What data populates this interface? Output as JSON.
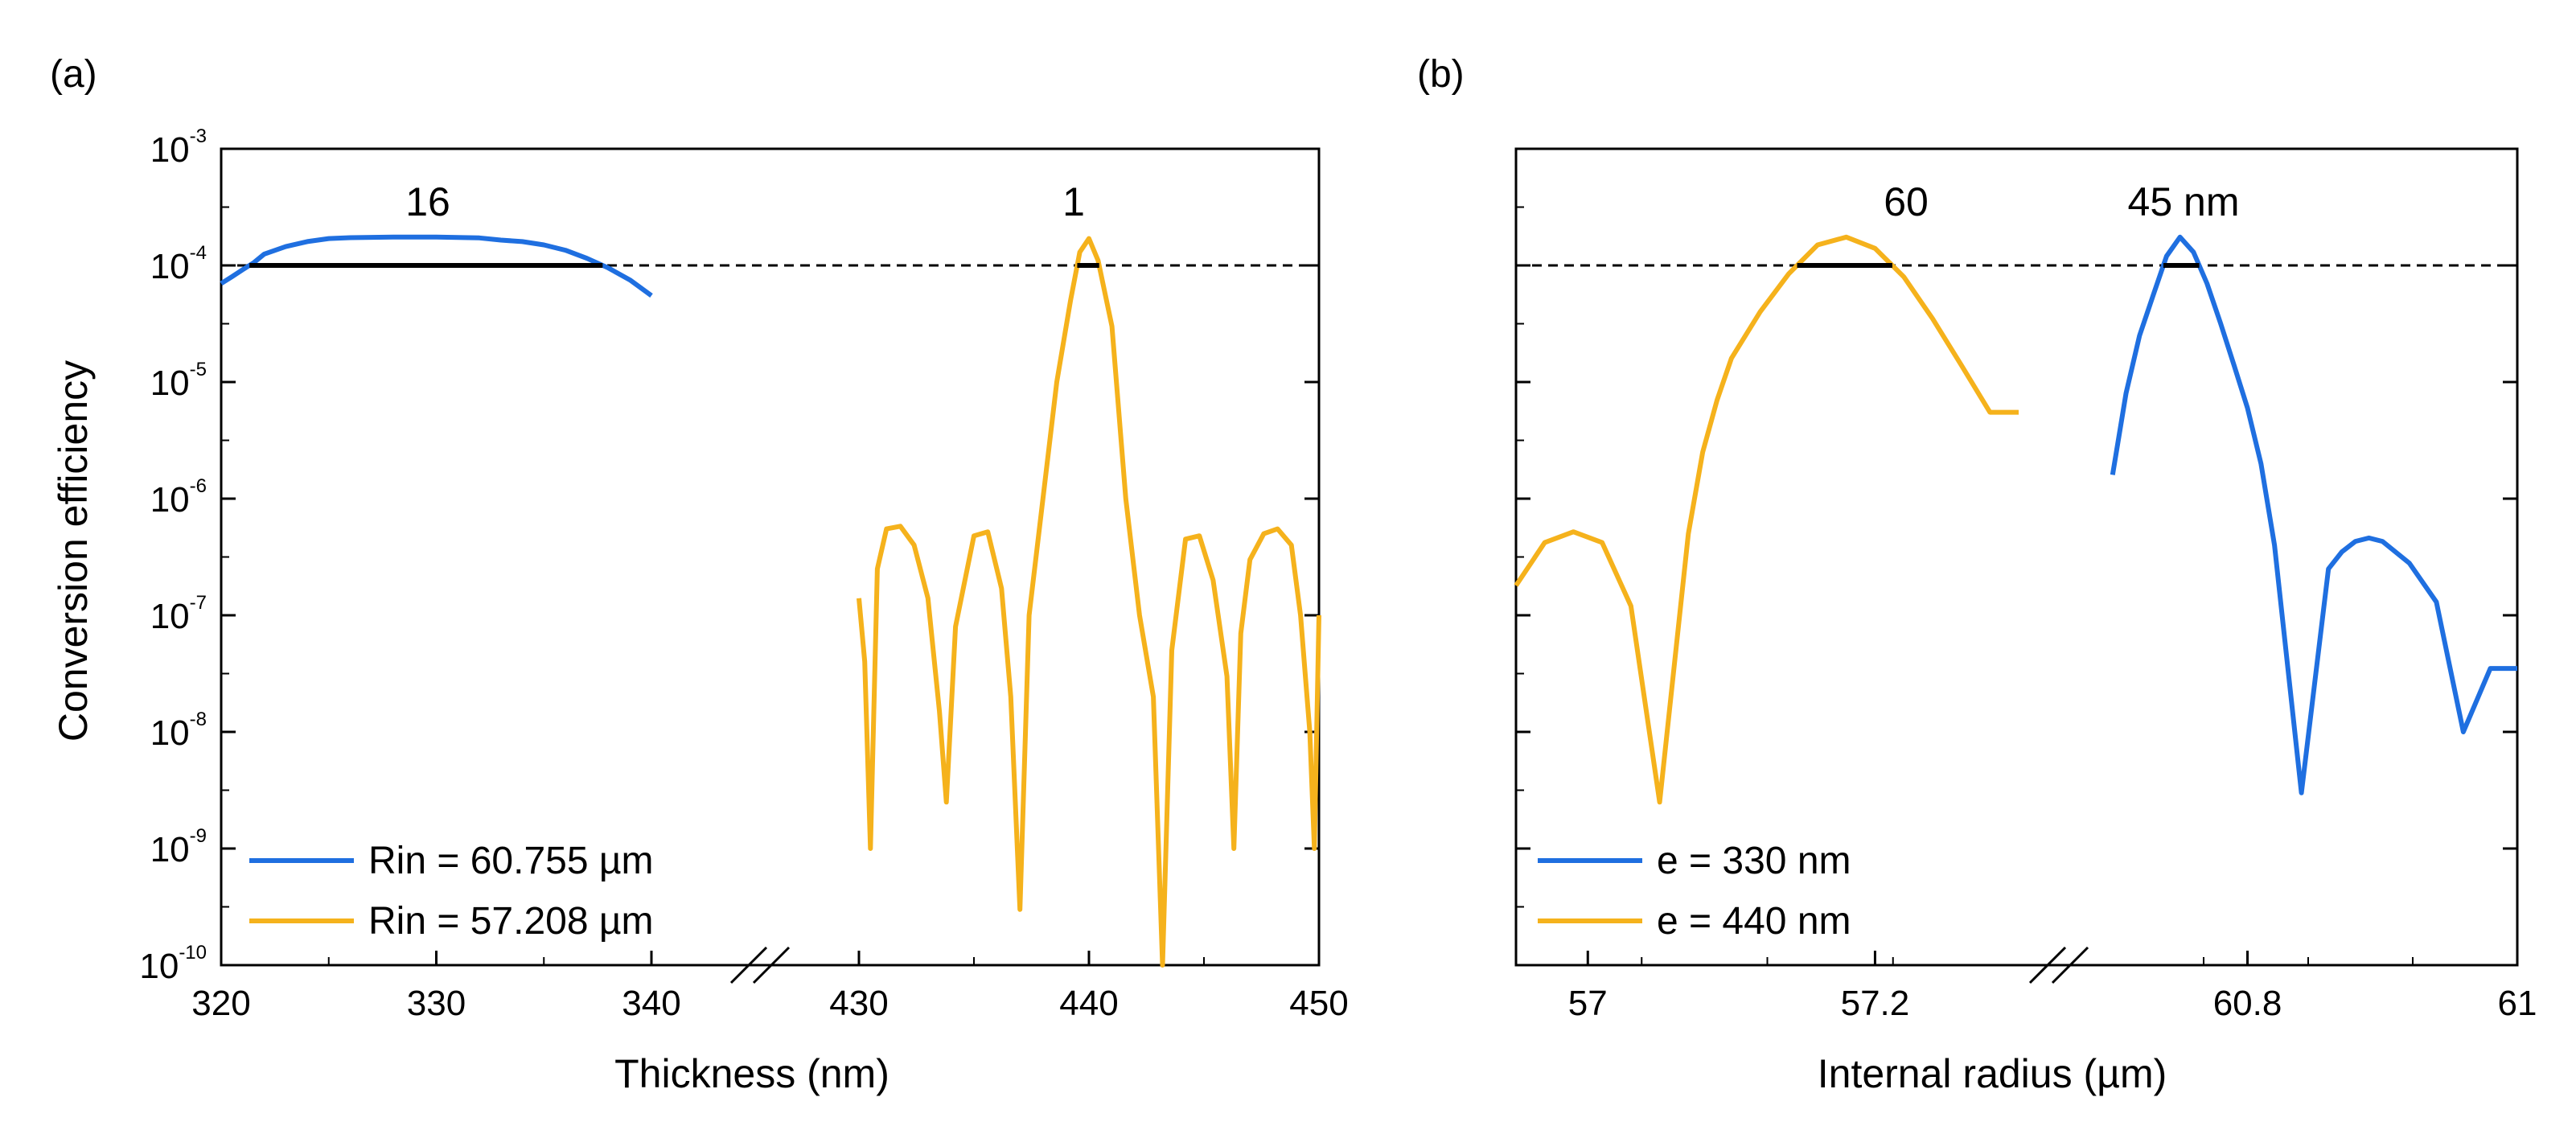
{
  "chart_data": [
    {
      "panel": "(a)",
      "type": "line",
      "yscale": "log",
      "ylabel": "Conversion efficiency",
      "xlabel": "Thickness (nm)",
      "ylim": [
        1e-10,
        0.001
      ],
      "y_ticks": [
        {
          "base": "10",
          "exp": "-10"
        },
        {
          "base": "10",
          "exp": "-9"
        },
        {
          "base": "10",
          "exp": "-8"
        },
        {
          "base": "10",
          "exp": "-7"
        },
        {
          "base": "10",
          "exp": "-6"
        },
        {
          "base": "10",
          "exp": "-5"
        },
        {
          "base": "10",
          "exp": "-4"
        },
        {
          "base": "10",
          "exp": "-3"
        }
      ],
      "threshold": 0.0001,
      "broken_axis": true,
      "segments": [
        {
          "xlim": [
            320,
            340
          ],
          "ticks": [
            "320",
            "330",
            "340"
          ]
        },
        {
          "xlim": [
            430,
            450
          ],
          "ticks": [
            "430",
            "440",
            "450"
          ]
        }
      ],
      "annotations": [
        "16",
        "1"
      ],
      "legend_position": "bottom-left",
      "series": [
        {
          "name": "Rin = 60.755 µm",
          "color": "#1f6fe0",
          "segment": 0,
          "x": [
            320,
            320.5,
            321,
            321.5,
            322,
            323,
            324,
            325,
            326,
            328,
            330,
            332,
            333,
            334,
            335,
            336,
            337,
            338,
            339,
            340
          ],
          "y": [
            7e-05,
            8e-05,
            9.2e-05,
            0.000105,
            0.000125,
            0.000145,
            0.00016,
            0.00017,
            0.000173,
            0.000175,
            0.000175,
            0.000172,
            0.000165,
            0.00016,
            0.00015,
            0.000135,
            0.000115,
            9.5e-05,
            7.5e-05,
            5.5e-05
          ]
        },
        {
          "name": "Rin = 57.208 µm",
          "color": "#f5b21c",
          "segment": 1,
          "x": [
            430,
            430.25,
            430.5,
            430.8,
            431.2,
            431.8,
            432.4,
            433,
            433.5,
            433.8,
            434.2,
            435,
            435.6,
            436.2,
            436.6,
            437,
            437.4,
            438,
            438.6,
            439.2,
            439.6,
            440,
            440.4,
            441,
            441.6,
            442.2,
            442.8,
            443.2,
            443.6,
            444.2,
            444.8,
            445.4,
            446,
            446.3,
            446.6,
            447,
            447.6,
            448.2,
            448.8,
            449.2,
            449.6,
            449.8,
            450
          ],
          "y": [
            1.4e-07,
            4e-08,
            1e-09,
            2.5e-07,
            5.5e-07,
            5.8e-07,
            4e-07,
            1.4e-07,
            1.5e-08,
            2.5e-09,
            8e-08,
            4.8e-07,
            5.2e-07,
            1.7e-07,
            2e-08,
            3e-10,
            1e-07,
            1e-06,
            1e-05,
            5e-05,
            0.00013,
            0.00017,
            0.00011,
            3e-05,
            1e-06,
            1e-07,
            2e-08,
            1e-10,
            5e-08,
            4.5e-07,
            4.8e-07,
            2e-07,
            3e-08,
            1e-09,
            7e-08,
            3e-07,
            5e-07,
            5.5e-07,
            4e-07,
            1e-07,
            1e-08,
            1e-09,
            1e-07
          ]
        }
      ]
    },
    {
      "panel": "(b)",
      "type": "line",
      "yscale": "log",
      "ylabel": "",
      "xlabel": "Internal radius (µm)",
      "ylim": [
        1e-10,
        0.001
      ],
      "threshold": 0.0001,
      "broken_axis": true,
      "segments": [
        {
          "xlim": [
            56.95,
            57.3
          ],
          "ticks": [
            "57",
            "57.2"
          ],
          "tick_values": [
            57,
            57.2
          ]
        },
        {
          "xlim": [
            60.69,
            61.0
          ],
          "ticks": [
            "60.8",
            "61"
          ],
          "tick_values": [
            60.8,
            61.0
          ]
        }
      ],
      "annotations": [
        "60",
        "45 nm"
      ],
      "legend_position": "bottom-left",
      "series": [
        {
          "name": "e = 330 nm",
          "color": "#1f6fe0",
          "segment": 1,
          "x": [
            60.7,
            60.71,
            60.72,
            60.73,
            60.74,
            60.75,
            60.76,
            60.77,
            60.78,
            60.79,
            60.8,
            60.81,
            60.82,
            60.84,
            60.86,
            60.87,
            60.88,
            60.89,
            60.9,
            60.92,
            60.94,
            60.96,
            60.98,
            61.0
          ],
          "y": [
            1.6e-06,
            8e-06,
            2.5e-05,
            5.5e-05,
            0.00012,
            0.000175,
            0.00013,
            7e-05,
            3.2e-05,
            1.4e-05,
            6e-06,
            2e-06,
            4e-07,
            3e-09,
            2.5e-07,
            3.5e-07,
            4.3e-07,
            4.6e-07,
            4.3e-07,
            2.8e-07,
            1.3e-07,
            1e-08,
            3.5e-08,
            3.5e-08
          ]
        },
        {
          "name": "e = 440 nm",
          "color": "#f5b21c",
          "segment": 0,
          "x": [
            56.95,
            56.97,
            56.99,
            57.01,
            57.03,
            57.05,
            57.07,
            57.08,
            57.09,
            57.1,
            57.12,
            57.14,
            57.16,
            57.18,
            57.2,
            57.22,
            57.24,
            57.26,
            57.28,
            57.3
          ],
          "y": [
            1.8e-07,
            4.2e-07,
            5.2e-07,
            4.2e-07,
            1.2e-07,
            2.5e-09,
            5e-07,
            2.5e-06,
            7e-06,
            1.6e-05,
            4e-05,
            8.5e-05,
            0.00015,
            0.000175,
            0.00014,
            8e-05,
            3.5e-05,
            1.4e-05,
            5.5e-06,
            5.5e-06
          ]
        }
      ]
    }
  ]
}
